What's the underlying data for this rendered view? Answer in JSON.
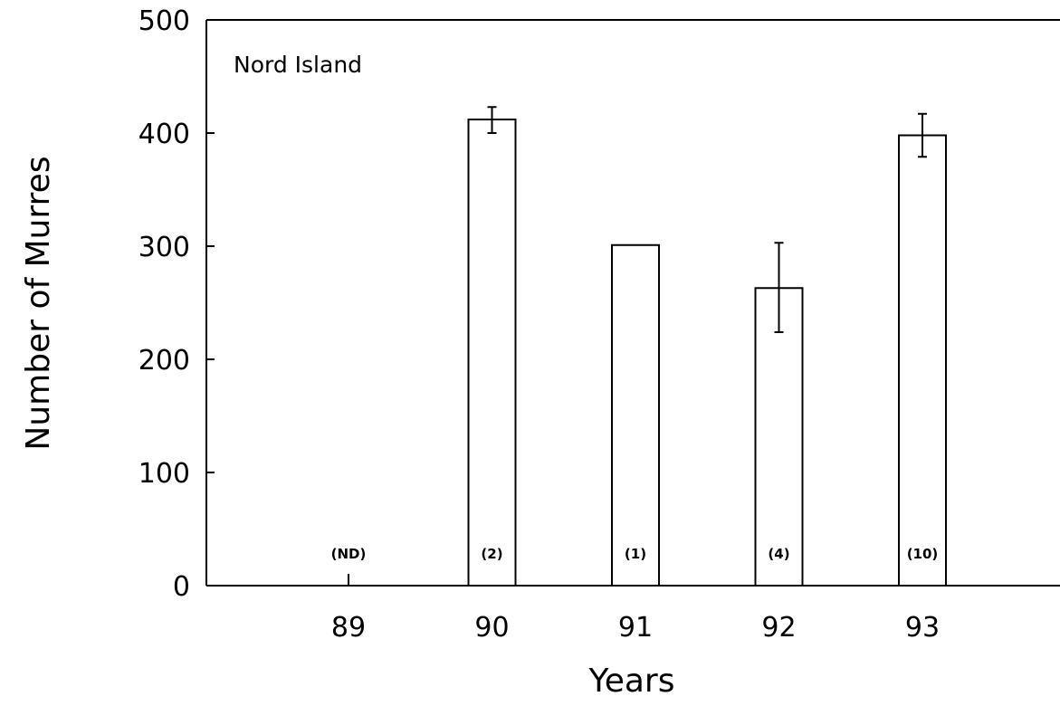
{
  "chart_data": {
    "type": "bar",
    "annotation": "Nord Island",
    "xlabel": "Years",
    "ylabel": "Number of Murres",
    "ylim": [
      0,
      500
    ],
    "yticks": [
      0,
      100,
      200,
      300,
      400,
      500
    ],
    "categories": [
      "89",
      "90",
      "91",
      "92",
      "93"
    ],
    "values": [
      null,
      412,
      301,
      263,
      398
    ],
    "error_low": [
      null,
      400,
      null,
      224,
      379
    ],
    "error_high": [
      null,
      423,
      null,
      303,
      417
    ],
    "sample_labels": [
      "(ND)",
      "(2)",
      "(1)",
      "(4)",
      "(10)"
    ],
    "grid": false
  }
}
